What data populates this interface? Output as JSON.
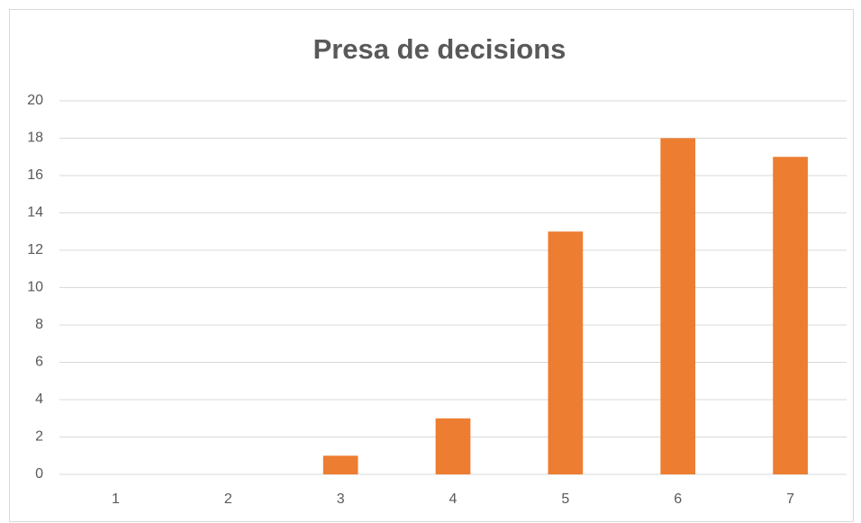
{
  "chart_data": {
    "type": "bar",
    "title": "Presa de decisions",
    "categories": [
      "1",
      "2",
      "3",
      "4",
      "5",
      "6",
      "7"
    ],
    "values": [
      0,
      0,
      1,
      3,
      13,
      18,
      17
    ],
    "color": "#ed7d31",
    "ylim": [
      0,
      20
    ],
    "yticks": [
      0,
      2,
      4,
      6,
      8,
      10,
      12,
      14,
      16,
      18,
      20
    ],
    "grid": true
  }
}
